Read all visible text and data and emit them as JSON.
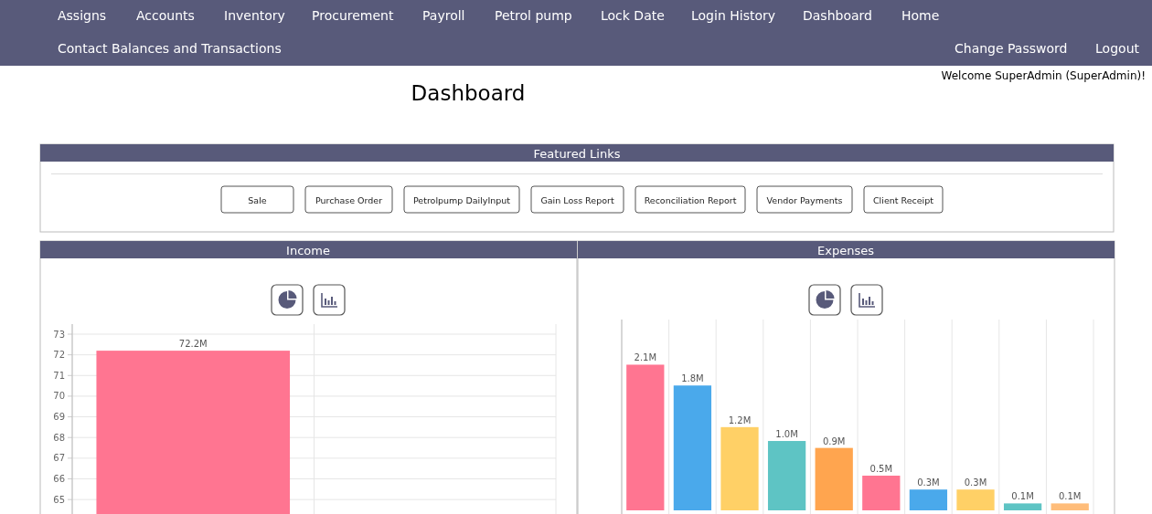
{
  "chart_data": [
    {
      "type": "other",
      "title": "Dashboard",
      "annotations": [
        "Assigns",
        "Accounts",
        "Inventory",
        "Procurement",
        "Payroll",
        "Petrol pump",
        "Lock Date",
        "Login History",
        "Dashboard",
        "Home",
        "Contact Balances and Transactions",
        "Change Password",
        "Logout",
        "Welcome SuperAdmin (SuperAdmin)!",
        "Featured Links",
        "Sale",
        "Purchase Order",
        "Petrolpump DailyInput",
        "Gain Loss Report",
        "Reconciliation Report",
        "Vendor Payments",
        "Client Receipt"
      ]
    },
    {
      "type": "bar",
      "title": "Income",
      "categories": [
        null,
        null
      ],
      "values": [
        72.2,
        null
      ],
      "colors": [
        "#ff7591",
        null
      ],
      "value_labels": [
        "72.2M",
        null
      ],
      "ylim": [
        64.3,
        73
      ],
      "yticks": [
        65,
        66,
        67,
        68,
        69,
        70,
        71,
        72,
        73
      ],
      "grid": true
    },
    {
      "type": "bar",
      "title": "Expenses",
      "categories": [
        null,
        null,
        null,
        null,
        null,
        null,
        null,
        null,
        null,
        null
      ],
      "values": [
        2.1,
        1.8,
        1.2,
        1.0,
        0.9,
        0.5,
        0.3,
        0.3,
        0.1,
        0.1
      ],
      "colors": [
        "#ff7591",
        "#4aa9eb",
        "#ffd066",
        "#5ec4c4",
        "#ffa54f",
        "#ff7591",
        "#4aa9eb",
        "#ffd066",
        "#5ec4c4",
        "#ffbd7a"
      ],
      "value_labels": [
        "2.1M",
        "1.8M",
        "1.2M",
        "1.0M",
        "0.9M",
        "0.5M",
        "0.3M",
        "0.3M",
        "0.1M",
        "0.1M"
      ],
      "grid": "x"
    }
  ]
}
